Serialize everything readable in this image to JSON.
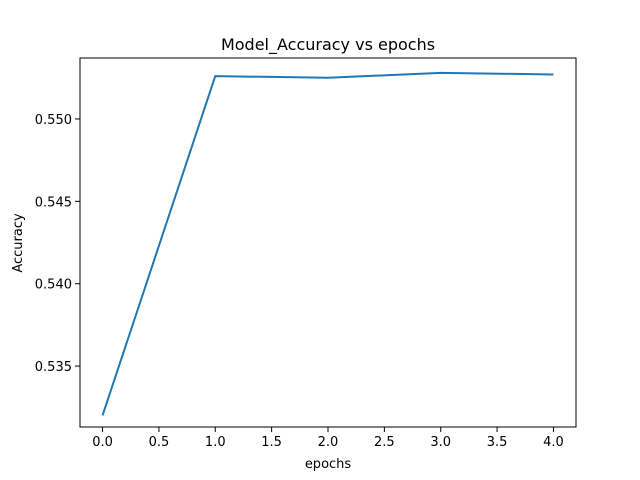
{
  "chart_data": {
    "type": "line",
    "title": "Model_Accuracy vs epochs",
    "xlabel": "epochs",
    "ylabel": "Accuracy",
    "xlim": [
      -0.2,
      4.2
    ],
    "ylim": [
      0.5313,
      0.5537
    ],
    "xticks": [
      0.0,
      0.5,
      1.0,
      1.5,
      2.0,
      2.5,
      3.0,
      3.5,
      4.0
    ],
    "xtick_labels": [
      "0.0",
      "0.5",
      "1.0",
      "1.5",
      "2.0",
      "2.5",
      "3.0",
      "3.5",
      "4.0"
    ],
    "yticks": [
      0.535,
      0.54,
      0.545,
      0.55
    ],
    "ytick_labels": [
      "0.535",
      "0.540",
      "0.545",
      "0.550"
    ],
    "grid": false,
    "series": [
      {
        "color": "#1f77b4",
        "x": [
          0,
          1,
          2,
          3,
          4
        ],
        "y": [
          0.532,
          0.5526,
          0.5525,
          0.5528,
          0.5527
        ]
      }
    ]
  }
}
